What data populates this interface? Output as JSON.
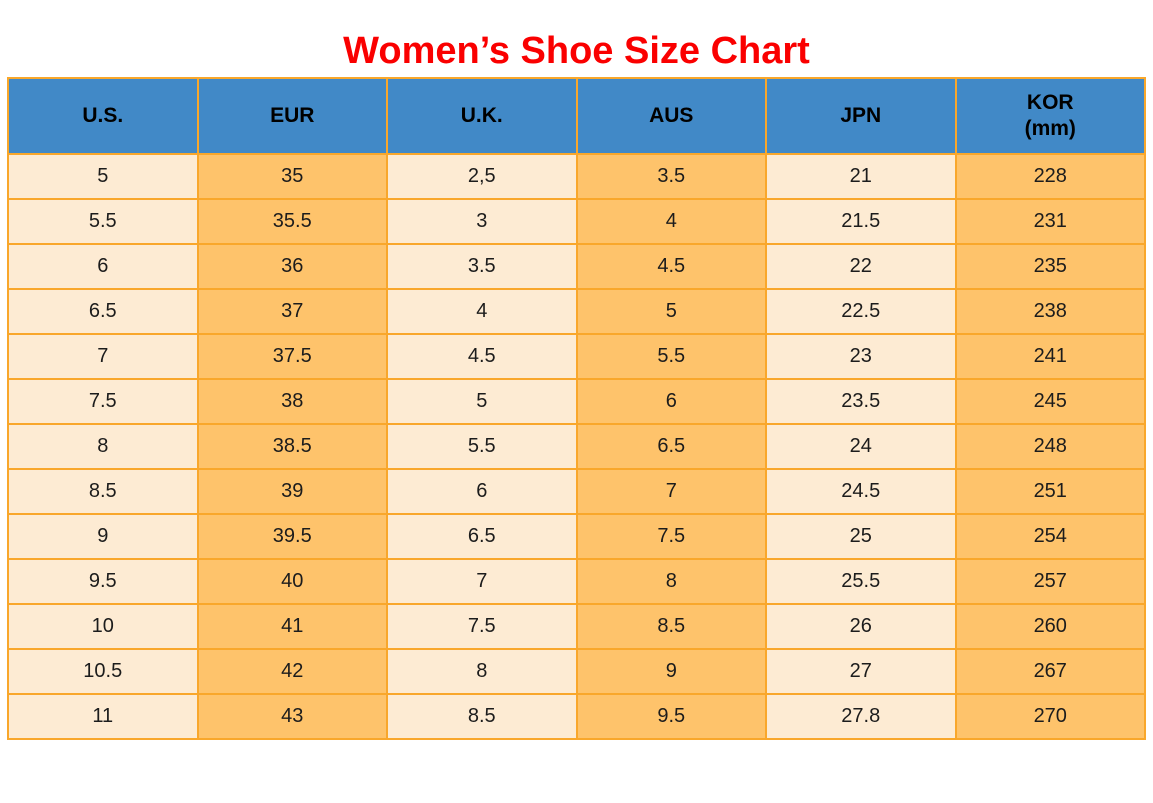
{
  "page": {
    "title": "Women’s Shoe Size Chart"
  },
  "colors": {
    "title_red": "#FA0000",
    "header_blue": "#4189C7",
    "grid_orange": "#F9A72B",
    "cell_orange": "#FEC36B",
    "cell_cream": "#FDEBD3"
  },
  "chart_data": {
    "type": "table",
    "title": "Women’s Shoe Size Chart",
    "columns": [
      "U.S.",
      "EUR",
      "U.K.",
      "AUS",
      "JPN",
      "KOR (mm)"
    ],
    "header": [
      {
        "label": "U.S."
      },
      {
        "label": "EUR"
      },
      {
        "label": "U.K."
      },
      {
        "label": "AUS"
      },
      {
        "label": "JPN"
      },
      {
        "label": "KOR",
        "sublabel": "(mm)"
      }
    ],
    "rows": [
      [
        "5",
        "35",
        "2,5",
        "3.5",
        "21",
        "228"
      ],
      [
        "5.5",
        "35.5",
        "3",
        "4",
        "21.5",
        "231"
      ],
      [
        "6",
        "36",
        "3.5",
        "4.5",
        "22",
        "235"
      ],
      [
        "6.5",
        "37",
        "4",
        "5",
        "22.5",
        "238"
      ],
      [
        "7",
        "37.5",
        "4.5",
        "5.5",
        "23",
        "241"
      ],
      [
        "7.5",
        "38",
        "5",
        "6",
        "23.5",
        "245"
      ],
      [
        "8",
        "38.5",
        "5.5",
        "6.5",
        "24",
        "248"
      ],
      [
        "8.5",
        "39",
        "6",
        "7",
        "24.5",
        "251"
      ],
      [
        "9",
        "39.5",
        "6.5",
        "7.5",
        "25",
        "254"
      ],
      [
        "9.5",
        "40",
        "7",
        "8",
        "25.5",
        "257"
      ],
      [
        "10",
        "41",
        "7.5",
        "8.5",
        "26",
        "260"
      ],
      [
        "10.5",
        "42",
        "8",
        "9",
        "27",
        "267"
      ],
      [
        "11",
        "43",
        "8.5",
        "9.5",
        "27.8",
        "270"
      ]
    ]
  }
}
